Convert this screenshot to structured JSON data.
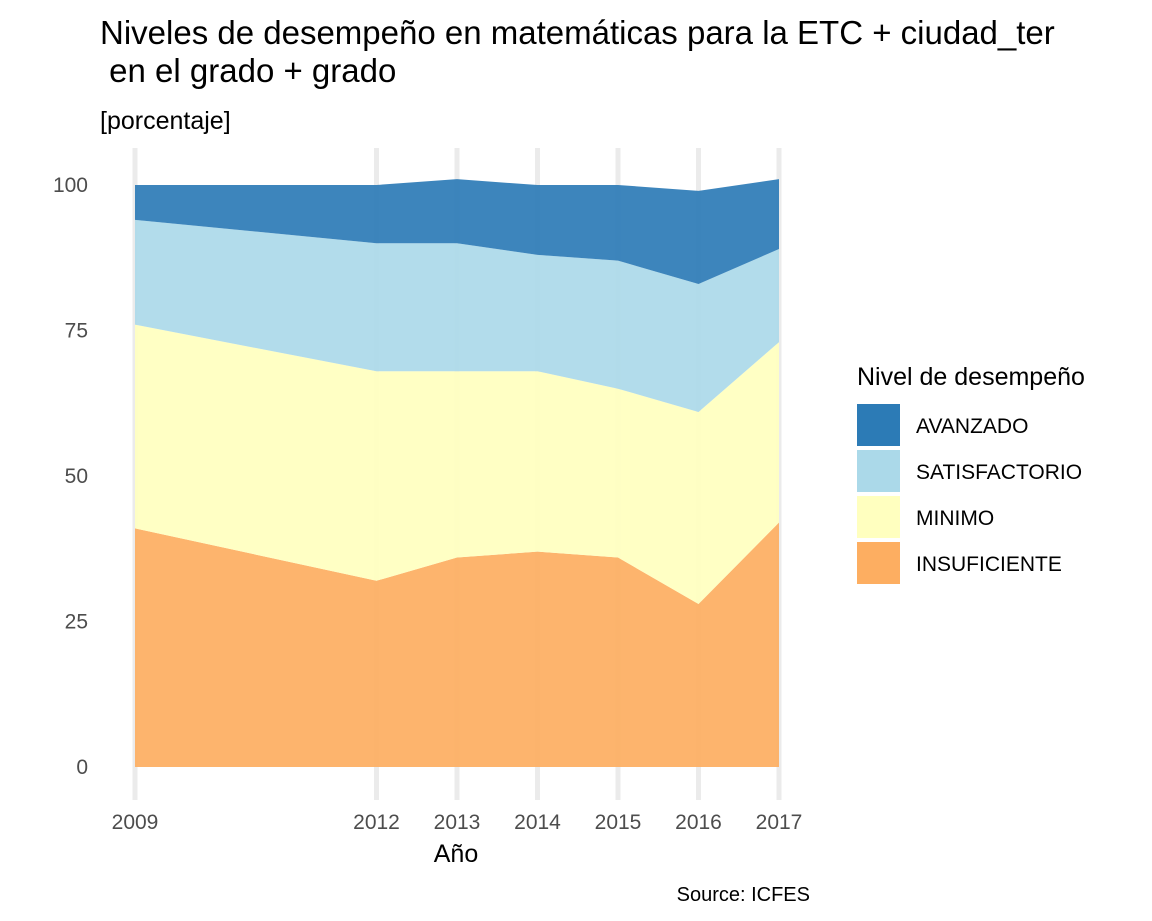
{
  "chart_data": {
    "type": "area",
    "stacked": true,
    "title_line1": "Niveles de desempeño en matemáticas para la ETC + ciudad_ter",
    "title_line2": " en el grado + grado",
    "subtitle": "[porcentaje]",
    "xlabel": "Año",
    "ylabel": "",
    "caption": "Source: ICFES",
    "x": [
      2009,
      2012,
      2013,
      2014,
      2015,
      2016,
      2017
    ],
    "x_tick_labels": [
      "2009",
      "2012",
      "2013",
      "2014",
      "2015",
      "2016",
      "2017"
    ],
    "y_ticks": [
      0,
      25,
      50,
      75,
      100
    ],
    "y_tick_labels": [
      "0",
      "25",
      "50",
      "75",
      "100"
    ],
    "xlim": [
      2009,
      2017
    ],
    "ylim": [
      0,
      100
    ],
    "grid": "vertical-major",
    "legend_title": "Nivel de desempeño",
    "legend_position": "right",
    "series": [
      {
        "name": "INSUFICIENTE",
        "color": "#fdae61",
        "values": [
          41,
          32,
          36,
          37,
          36,
          28,
          42
        ]
      },
      {
        "name": "MINIMO",
        "color": "#ffffbf",
        "values": [
          35,
          36,
          32,
          31,
          29,
          33,
          31
        ]
      },
      {
        "name": "SATISFACTORIO",
        "color": "#abd9e9",
        "values": [
          18,
          22,
          22,
          20,
          22,
          22,
          16
        ]
      },
      {
        "name": "AVANZADO",
        "color": "#2c7bb6",
        "values": [
          6,
          10,
          11,
          12,
          13,
          16,
          12
        ]
      }
    ],
    "legend_order": [
      "AVANZADO",
      "SATISFACTORIO",
      "MINIMO",
      "INSUFICIENTE"
    ]
  }
}
